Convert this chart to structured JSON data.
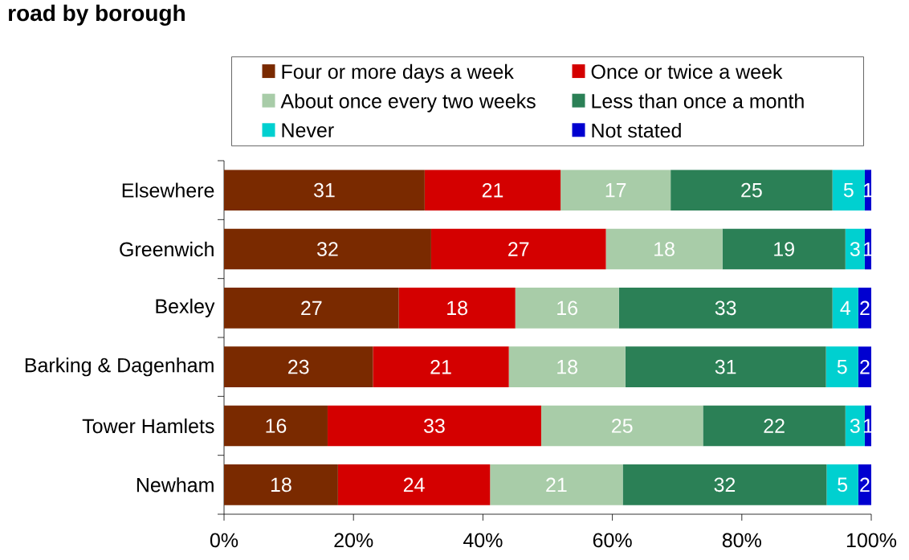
{
  "chart_data": {
    "type": "bar",
    "orientation": "horizontal",
    "stacked": true,
    "title": "road by borough",
    "categories": [
      "Elsewhere",
      "Greenwich",
      "Bexley",
      "Barking & Dagenham",
      "Tower Hamlets",
      "Newham"
    ],
    "series": [
      {
        "name": "Four or more days a week",
        "color": "#7a2a00",
        "values": [
          31,
          32,
          27,
          23,
          16,
          17.6
        ],
        "value_labels": [
          "31",
          "32",
          "27",
          "23",
          "16",
          "18"
        ]
      },
      {
        "name": "Once or twice a week",
        "color": "#d40000",
        "values": [
          21,
          27,
          18,
          21,
          33,
          23.5
        ],
        "value_labels": [
          "21",
          "27",
          "18",
          "21",
          "33",
          "24"
        ]
      },
      {
        "name": "About once every two weeks",
        "color": "#a8cca8",
        "values": [
          17,
          18,
          16,
          18,
          25,
          20.5
        ],
        "value_labels": [
          "17",
          "18",
          "16",
          "18",
          "25",
          "21"
        ]
      },
      {
        "name": "Less than once a month",
        "color": "#2b8056",
        "values": [
          25,
          19,
          33,
          31,
          22,
          31.5
        ],
        "value_labels": [
          "25",
          "19",
          "33",
          "31",
          "22",
          "32"
        ]
      },
      {
        "name": "Never",
        "color": "#00d0d0",
        "values": [
          5,
          3,
          4,
          5,
          3,
          4.9
        ],
        "value_labels": [
          "5",
          "3",
          "4",
          "5",
          "3",
          "5"
        ]
      },
      {
        "name": "Not stated",
        "color": "#0000d0",
        "values": [
          1,
          1,
          2,
          2,
          1,
          2.0
        ],
        "value_labels": [
          "1",
          "1",
          "2",
          "2",
          "1",
          "2"
        ]
      }
    ],
    "xlim": [
      0,
      100
    ],
    "xticks": [
      {
        "value": 0,
        "label": "0%"
      },
      {
        "value": 20,
        "label": "20%"
      },
      {
        "value": 40,
        "label": "40%"
      },
      {
        "value": 60,
        "label": "60%"
      },
      {
        "value": 80,
        "label": "80%"
      },
      {
        "value": 100,
        "label": "100%"
      }
    ],
    "legend": "top"
  }
}
